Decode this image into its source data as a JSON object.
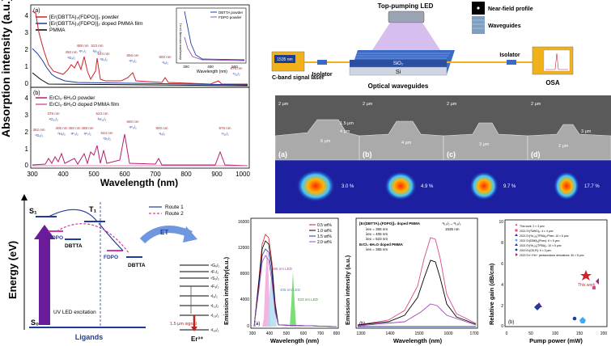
{
  "top_left": {
    "panel_a_tag": "(a)",
    "panel_b_tag": "(b)",
    "y_title": "Absorption intensity (a.u.)",
    "x_title": "Wavelength (nm)",
    "legend_a": [
      "[Er(DBTTA)₃(FDPO)]₂ powder",
      "[Er(DBTTA)₃(FDPO)]₂ doped PMMA film",
      "PMMA"
    ],
    "legend_b": [
      "ErCl₃·6H₂O powder",
      "ErCl₃·6H₂O doped PMMA film"
    ],
    "y_ticks_a": [
      "4",
      "3",
      "2",
      "1",
      "0"
    ],
    "y_ticks_b": [
      "4",
      "3",
      "2",
      "1",
      "0"
    ],
    "x_ticks": [
      "300",
      "400",
      "500",
      "600",
      "700",
      "800",
      "900",
      "1000"
    ],
    "inset_legend": [
      "DBTTA powder",
      "FDPO powder"
    ],
    "inset_x_title": "Wavelength (nm)",
    "inset_y_title": "Absorption intensity (a.u.)",
    "inset_x_ticks": [
      "300",
      "400",
      "500"
    ],
    "peaks_a": [
      {
        "wl": "450 nm",
        "lvl": "⁴G₉/₂"
      },
      {
        "wl": "488 nm",
        "lvl": "⁴F₇/₂"
      },
      {
        "wl": "523 nm",
        "lvl": "²H₁₁/₂"
      },
      {
        "wl": "544 nm",
        "lvl": "⁴S₃/₂"
      },
      {
        "wl": "656 nm",
        "lvl": "⁴F₉/₂"
      },
      {
        "wl": "800 nm",
        "lvl": "⁴I₉/₂"
      },
      {
        "wl": "976 nm",
        "lvl": "⁴I₁₁/₂"
      }
    ],
    "peaks_b": [
      {
        "wl": "378 nm",
        "lvl": "⁴G₁₁/₂"
      },
      {
        "wl": "362 nm",
        "lvl": "⁴G₉/₂"
      },
      {
        "wl": "406 nm",
        "lvl": "²H₉/₂"
      },
      {
        "wl": "450 nm",
        "lvl": "⁴F₃/₂"
      },
      {
        "wl": "488 nm",
        "lvl": "⁴F₇/₂"
      },
      {
        "wl": "523 nm",
        "lvl": "²H₁₁/₂"
      },
      {
        "wl": "544 nm",
        "lvl": "⁴S₃/₂"
      },
      {
        "wl": "660 nm",
        "lvl": "⁴F₉/₂"
      },
      {
        "wl": "800 nm",
        "lvl": "⁴I₉/₂"
      },
      {
        "wl": "976 nm",
        "lvl": "⁴I₁₁/₂"
      }
    ]
  },
  "setup": {
    "top_led": "Top-pumping LED",
    "near_field": "Near-field profile",
    "waveguides": "Waveguides",
    "laser_display": "1535 nm",
    "laser_label": "C-band signal laser",
    "isolator_1": "Isolator",
    "isolator_2": "Isolator",
    "sio2": "SiO₂",
    "si": "Si",
    "optical_waveguides": "Optical waveguides",
    "osa": "OSA"
  },
  "sem": {
    "scale": "2 μm",
    "tags": [
      "(a)",
      "(b)",
      "(c)",
      "(d)"
    ],
    "dims": [
      {
        "w": "6 μm",
        "h": "4 μm",
        "t": "1.5 μm"
      },
      {
        "w": "4 μm",
        "h": "",
        "t": ""
      },
      {
        "w": "3 μm",
        "h": "",
        "t": ""
      },
      {
        "w": "2 μm",
        "h": "3 μm",
        "t": ""
      }
    ],
    "mode_pct": [
      "3.0 %",
      "4.9 %",
      "9.7 %",
      "17.7 %"
    ]
  },
  "energy": {
    "y_title": "Energy (eV)",
    "s1": "S₁",
    "t1": "T₁",
    "s0": "S₀",
    "route1": "Route 1",
    "route2": "Route 2",
    "fdpo_1": "FDPO",
    "dbtta_1": "DBTTA",
    "fdpo_2": "FDPO",
    "dbtta_2": "DBTTA",
    "uv_led": "UV LED excitation",
    "ligands": "Ligands",
    "et": "ET",
    "signal": "1.5 μm signal",
    "er": "Er³⁺",
    "levels": [
      "⁴G₉/₂",
      "⁴F₇/₂",
      "⁴S₃/₂",
      "⁴F₉/₂",
      "⁴I₉/₂",
      "⁴I₁₁/₂",
      "⁴I₁₃/₂",
      "⁴I₁₅/₂"
    ]
  },
  "emission_a": {
    "tag": "(a)",
    "y_title": "Emission intensity(a.u.)",
    "x_title": "Wavelength (nm)",
    "y_ticks": [
      "16000",
      "12000",
      "8000",
      "4000",
      "0"
    ],
    "x_ticks": [
      "300",
      "400",
      "500",
      "600",
      "700",
      "800"
    ],
    "legend": [
      "0.5 wt%",
      "1.0 wt%",
      "1.5 wt%",
      "2.0 wt%"
    ],
    "led_labels": [
      "365 nm LED",
      "405 nm LED",
      "523 nm LED"
    ]
  },
  "emission_b": {
    "tag": "(b)",
    "y_title": "Emission intensity (a.u.)",
    "x_title": "Wavelength (nm)",
    "x_ticks": [
      "1300",
      "1400",
      "1500",
      "1600",
      "1700"
    ],
    "title_line": "[Er(DBTTA)₃(FDPO)]₂ doped PMMA",
    "legend": [
      "λex = 365 nm",
      "λex = 405 nm",
      "λex = 523 nm",
      "ErCl₃·6H₂O doped PMMA",
      "λex = 365 nm"
    ],
    "transition": "⁴I₁₃/₂→⁴I₁₅/₂",
    "peak": "1535 nm"
  },
  "gain": {
    "tag": "(b)",
    "y_title": "Relative gain (dB/cm)",
    "x_title": "Pump power (mW)",
    "y_ticks": [
      "10",
      "8",
      "6",
      "4",
      "2",
      "0"
    ],
    "x_ticks": [
      "0",
      "50",
      "100",
      "150",
      "200"
    ],
    "this_work": "This work",
    "legend": [
      "This work: 2 × 3 μm²",
      "2021 Er(TMHD)₃: 4 × 4 μm²",
      "2021 Er(Yb₃)₃(TPBA)₃/Phen: 10 × 5 μm²",
      "2021 Er(DBM)₃(Phen): 6 × 5 μm²",
      "2021 Er(Yb₃)₃(TPBA)₃: 10 × 5 μm²",
      "2019 Er(CB-Pi): 5 × 3 μm²",
      "2022 Er³⁺/Yb³⁺ pentanedione derivatives: 30 × 8 μm²"
    ]
  }
}
